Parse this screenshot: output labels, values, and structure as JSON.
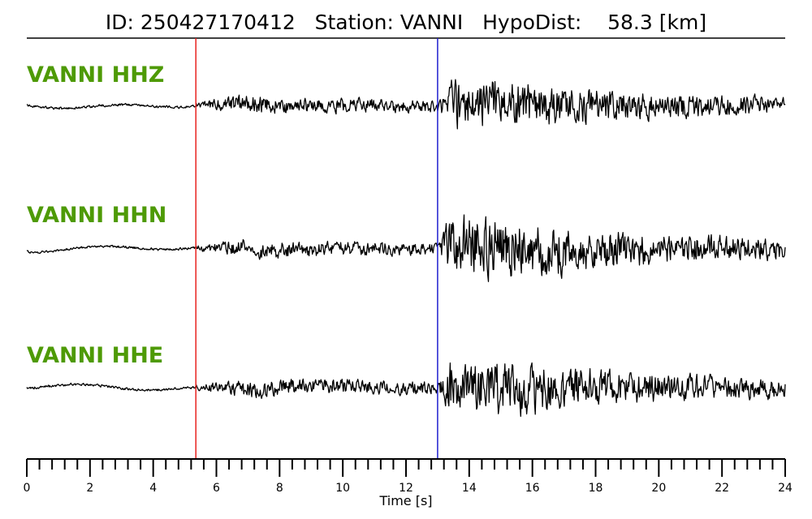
{
  "header": {
    "id_label": "ID:",
    "id_value": "250427170412",
    "station_label": "Station:",
    "station_value": "VANNI",
    "hypodist_label": "HypoDist:",
    "hypodist_value": "58.3",
    "hypodist_unit": "[km]"
  },
  "chart_data": {
    "type": "line",
    "subtype": "seismogram",
    "xlabel": "Time [s]",
    "xlim": [
      0,
      24
    ],
    "x_major_ticks": [
      0,
      2,
      4,
      6,
      8,
      10,
      12,
      14,
      16,
      18,
      20,
      22,
      24
    ],
    "x_minor_step": 0.4,
    "picks": [
      {
        "time": 5.35,
        "color": "#e8231f"
      },
      {
        "time": 13.0,
        "color": "#1f1fcf"
      }
    ],
    "channels": [
      {
        "label": "VANNI HHZ",
        "color": "#4e9a06"
      },
      {
        "label": "VANNI HHN",
        "color": "#4e9a06"
      },
      {
        "label": "VANNI HHE",
        "color": "#4e9a06"
      }
    ],
    "colors": {
      "trace": "#000000",
      "axis": "#000000"
    }
  }
}
